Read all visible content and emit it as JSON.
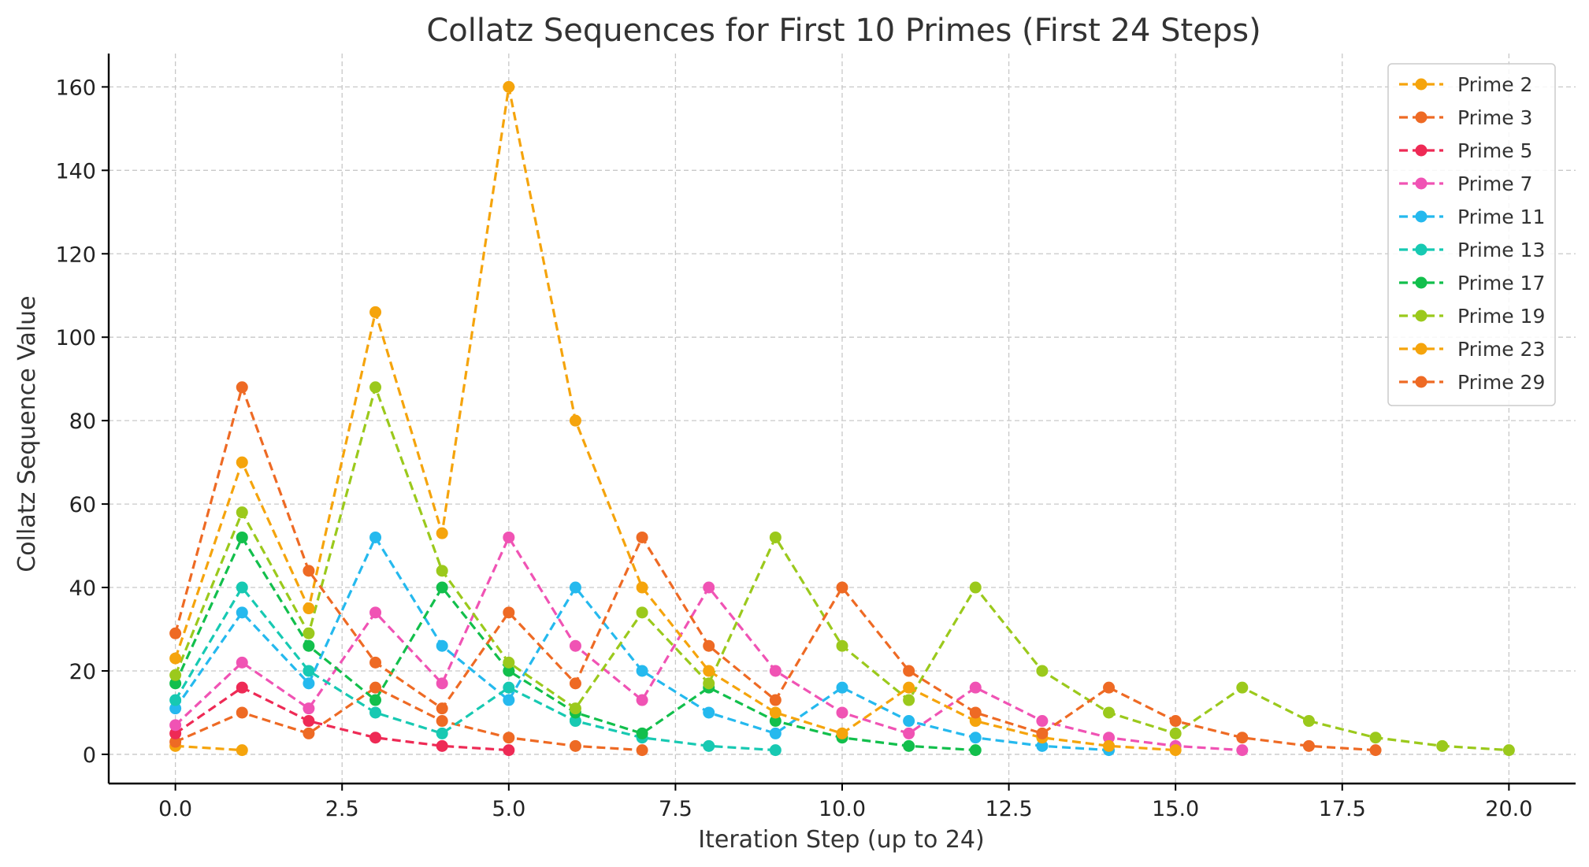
{
  "chart_data": {
    "type": "line",
    "title": "Collatz Sequences for First 10 Primes (First 24 Steps)",
    "xlabel": "Iteration Step (up to 24)",
    "ylabel": "Collatz Sequence Value",
    "xlim": [
      -1,
      21
    ],
    "ylim": [
      -7,
      168
    ],
    "xticks": [
      0,
      2.5,
      5,
      7.5,
      10,
      12.5,
      15,
      17.5,
      20
    ],
    "xtick_labels": [
      "0.0",
      "2.5",
      "5.0",
      "7.5",
      "10.0",
      "12.5",
      "15.0",
      "17.5",
      "20.0"
    ],
    "yticks": [
      0,
      20,
      40,
      60,
      80,
      100,
      120,
      140,
      160
    ],
    "ytick_labels": [
      "0",
      "20",
      "40",
      "60",
      "80",
      "100",
      "120",
      "140",
      "160"
    ],
    "grid": true,
    "line_style": "dashed",
    "legend_position": "top-right",
    "series": [
      {
        "name": "Prime 2",
        "color": "#f5a40c",
        "values": [
          2,
          1
        ]
      },
      {
        "name": "Prime 3",
        "color": "#ee6a24",
        "values": [
          3,
          10,
          5,
          16,
          8,
          4,
          2,
          1
        ]
      },
      {
        "name": "Prime 5",
        "color": "#ee2a55",
        "values": [
          5,
          16,
          8,
          4,
          2,
          1
        ]
      },
      {
        "name": "Prime 7",
        "color": "#f053b4",
        "values": [
          7,
          22,
          11,
          34,
          17,
          52,
          26,
          13,
          40,
          20,
          10,
          5,
          16,
          8,
          4,
          2,
          1
        ]
      },
      {
        "name": "Prime 11",
        "color": "#25b9ee",
        "values": [
          11,
          34,
          17,
          52,
          26,
          13,
          40,
          20,
          10,
          5,
          16,
          8,
          4,
          2,
          1
        ]
      },
      {
        "name": "Prime 13",
        "color": "#17c9b2",
        "values": [
          13,
          40,
          20,
          10,
          5,
          16,
          8,
          4,
          2,
          1
        ]
      },
      {
        "name": "Prime 17",
        "color": "#12bf4c",
        "values": [
          17,
          52,
          26,
          13,
          40,
          20,
          10,
          5,
          16,
          8,
          4,
          2,
          1
        ]
      },
      {
        "name": "Prime 19",
        "color": "#9bc91c",
        "values": [
          19,
          58,
          29,
          88,
          44,
          22,
          11,
          34,
          17,
          52,
          26,
          13,
          40,
          20,
          10,
          5,
          16,
          8,
          4,
          2,
          1
        ]
      },
      {
        "name": "Prime 23",
        "color": "#f5a40c",
        "values": [
          23,
          70,
          35,
          106,
          53,
          160,
          80,
          40,
          20,
          10,
          5,
          16,
          8,
          4,
          2,
          1
        ]
      },
      {
        "name": "Prime 29",
        "color": "#ee6a24",
        "values": [
          29,
          88,
          44,
          22,
          11,
          34,
          17,
          52,
          26,
          13,
          40,
          20,
          10,
          5,
          16,
          8,
          4,
          2,
          1
        ]
      }
    ]
  }
}
